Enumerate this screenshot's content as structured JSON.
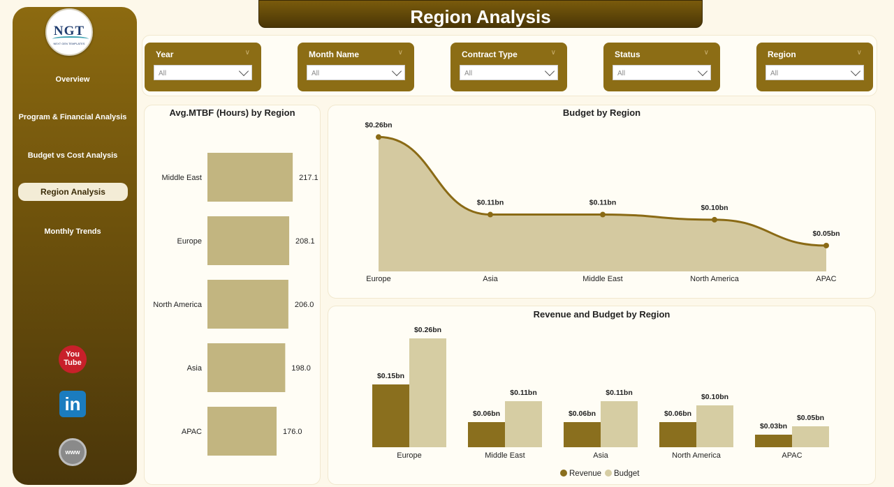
{
  "header": {
    "title": "Region Analysis"
  },
  "logo": {
    "text": "NGT",
    "subtitle": "NEXT GEN TEMPLATES"
  },
  "sidebar": {
    "items": [
      {
        "label": "Overview",
        "active": false
      },
      {
        "label": "Program & Financial Analysis",
        "active": false
      },
      {
        "label": "Budget vs Cost Analysis",
        "active": false
      },
      {
        "label": "Region Analysis",
        "active": true
      },
      {
        "label": "Monthly Trends",
        "active": false
      }
    ],
    "social": [
      {
        "icon": "youtube-icon",
        "line1": "You",
        "line2": "Tube"
      },
      {
        "icon": "linkedin-icon",
        "text": "in"
      },
      {
        "icon": "globe-icon",
        "text": "www"
      }
    ]
  },
  "filters": [
    {
      "label": "Year",
      "value": "All"
    },
    {
      "label": "Month Name",
      "value": "All"
    },
    {
      "label": "Contract Type",
      "value": "All"
    },
    {
      "label": "Status",
      "value": "All"
    },
    {
      "label": "Region",
      "value": "All"
    }
  ],
  "colors": {
    "accent": "#8c6d15",
    "bar_light": "#c2b580",
    "revenue": "#8a6f1e",
    "budget": "#d6cda3",
    "area_fill": "#d4c9a0",
    "line": "#8a6a15"
  },
  "chart_data": [
    {
      "type": "bar",
      "orientation": "horizontal",
      "title": "Avg.MTBF (Hours) by Region",
      "categories": [
        "Middle East",
        "Europe",
        "North America",
        "Asia",
        "APAC"
      ],
      "values": [
        217.1,
        208.1,
        206.0,
        198.0,
        176.0
      ],
      "labels": [
        "217.1",
        "208.1",
        "206.0",
        "198.0",
        "176.0"
      ],
      "xlim": [
        0,
        240
      ]
    },
    {
      "type": "area",
      "title": "Budget by Region",
      "categories": [
        "Europe",
        "Asia",
        "Middle East",
        "North America",
        "APAC"
      ],
      "values": [
        0.26,
        0.11,
        0.11,
        0.1,
        0.05
      ],
      "labels": [
        "$0.26bn",
        "$0.11bn",
        "$0.11bn",
        "$0.10bn",
        "$0.05bn"
      ],
      "ylim": [
        0,
        0.27
      ]
    },
    {
      "type": "bar",
      "title": "Revenue and Budget by Region",
      "categories": [
        "Europe",
        "Middle East",
        "Asia",
        "North America",
        "APAC"
      ],
      "series": [
        {
          "name": "Revenue",
          "values": [
            0.15,
            0.06,
            0.06,
            0.06,
            0.03
          ],
          "labels": [
            "$0.15bn",
            "$0.06bn",
            "$0.06bn",
            "$0.06bn",
            "$0.03bn"
          ]
        },
        {
          "name": "Budget",
          "values": [
            0.26,
            0.11,
            0.11,
            0.1,
            0.05
          ],
          "labels": [
            "$0.26bn",
            "$0.11bn",
            "$0.11bn",
            "$0.10bn",
            "$0.05bn"
          ]
        }
      ],
      "ylim": [
        0,
        0.27
      ],
      "legend": "bottom"
    }
  ]
}
